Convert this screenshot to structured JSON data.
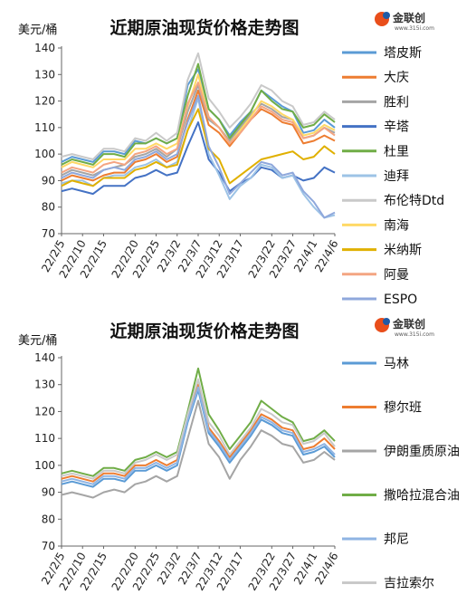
{
  "brand": {
    "name": "金联创",
    "site": "www.315i.com"
  },
  "x_labels": [
    "22/2/5",
    "22/2/10",
    "22/2/15",
    "22/2/20",
    "22/2/25",
    "22/3/2",
    "22/3/7",
    "22/3/12",
    "22/3/17",
    "22/3/22",
    "22/3/27",
    "22/4/1",
    "22/4/6"
  ],
  "chart_data": [
    {
      "type": "line",
      "title": "近期原油现货价格走势图",
      "ylabel": "美元/桶",
      "ylim": [
        70,
        140
      ],
      "yticks": [
        70,
        80,
        90,
        100,
        110,
        120,
        130,
        140
      ],
      "legend_position": "right",
      "colors": [
        "#5b9bd5",
        "#ed7d31",
        "#a5a5a5",
        "#4472c4",
        "#70ad47",
        "#9dc3e6",
        "#c9c9c9",
        "#ffd966",
        "#e0b000",
        "#f4a582",
        "#8fa8dc"
      ],
      "series": [
        {
          "name": "塔皮斯",
          "values": [
            97,
            99,
            98,
            97,
            101,
            101,
            100,
            105,
            104,
            106,
            104,
            106,
            126,
            132,
            117,
            113,
            107,
            112,
            116,
            124,
            121,
            118,
            116,
            108,
            109,
            113,
            110
          ]
        },
        {
          "name": "大庆",
          "values": [
            90,
            92,
            91,
            90,
            92,
            93,
            93,
            97,
            98,
            100,
            97,
            99,
            113,
            124,
            111,
            108,
            103,
            108,
            113,
            117,
            115,
            112,
            111,
            104,
            105,
            107,
            105
          ]
        },
        {
          "name": "胜利",
          "values": [
            92,
            94,
            93,
            92,
            94,
            95,
            96,
            99,
            100,
            102,
            99,
            102,
            116,
            126,
            113,
            110,
            105,
            110,
            115,
            119,
            117,
            114,
            113,
            106,
            107,
            110,
            108
          ]
        },
        {
          "name": "辛塔",
          "values": [
            86,
            87,
            86,
            85,
            88,
            88,
            88,
            91,
            92,
            94,
            92,
            93,
            103,
            112,
            98,
            93,
            86,
            89,
            91,
            95,
            94,
            91,
            92,
            90,
            91,
            95,
            93
          ]
        },
        {
          "name": "杜里",
          "values": [
            96,
            98,
            97,
            96,
            100,
            100,
            99,
            104,
            104,
            106,
            104,
            106,
            122,
            134,
            117,
            113,
            106,
            111,
            116,
            124,
            120,
            117,
            116,
            110,
            111,
            115,
            112
          ]
        },
        {
          "name": "迪拜",
          "values": [
            89,
            90,
            90,
            88,
            91,
            92,
            92,
            95,
            96,
            98,
            95,
            97,
            109,
            121,
            100,
            92,
            83,
            88,
            91,
            96,
            95,
            91,
            92,
            85,
            80,
            76,
            77
          ]
        },
        {
          "name": "布伦特Dtd",
          "values": [
            99,
            100,
            99,
            98,
            102,
            102,
            101,
            106,
            105,
            108,
            105,
            108,
            128,
            138,
            121,
            116,
            110,
            114,
            119,
            126,
            124,
            120,
            118,
            111,
            112,
            116,
            113
          ]
        },
        {
          "name": "南海",
          "values": [
            95,
            97,
            96,
            95,
            98,
            98,
            98,
            102,
            102,
            104,
            102,
            104,
            118,
            130,
            114,
            110,
            104,
            109,
            114,
            120,
            118,
            115,
            113,
            107,
            108,
            111,
            109
          ]
        },
        {
          "name": "米纳斯",
          "values": [
            88,
            90,
            89,
            88,
            91,
            91,
            91,
            94,
            95,
            97,
            95,
            96,
            109,
            117,
            102,
            98,
            89,
            92,
            95,
            98,
            99,
            100,
            101,
            98,
            99,
            103,
            100
          ]
        },
        {
          "name": "阿曼",
          "values": [
            93,
            95,
            94,
            93,
            96,
            97,
            96,
            100,
            101,
            103,
            100,
            102,
            119,
            127,
            114,
            110,
            104,
            108,
            113,
            118,
            116,
            113,
            112,
            106,
            107,
            110,
            107
          ]
        },
        {
          "name": "ESPO",
          "values": [
            91,
            93,
            92,
            91,
            94,
            95,
            94,
            98,
            99,
            101,
            98,
            100,
            112,
            122,
            103,
            95,
            85,
            89,
            93,
            97,
            96,
            92,
            93,
            86,
            82,
            76,
            78
          ]
        }
      ]
    },
    {
      "type": "line",
      "title": "近期原油现货价格走势图",
      "ylabel": "美元/桶",
      "ylim": [
        70,
        140
      ],
      "yticks": [
        70,
        80,
        90,
        100,
        110,
        120,
        130,
        140
      ],
      "legend_position": "right",
      "colors": [
        "#5b9bd5",
        "#ed7d31",
        "#a5a5a5",
        "#70ad47",
        "#8fb4e3",
        "#c9c9c9"
      ],
      "series": [
        {
          "name": "马林",
          "values": [
            93,
            94,
            93,
            92,
            95,
            95,
            94,
            98,
            98,
            100,
            98,
            100,
            116,
            128,
            112,
            107,
            101,
            106,
            111,
            117,
            115,
            112,
            111,
            104,
            105,
            107,
            103
          ]
        },
        {
          "name": "穆尔班",
          "values": [
            95,
            96,
            95,
            94,
            97,
            97,
            96,
            100,
            100,
            102,
            100,
            102,
            118,
            130,
            114,
            109,
            103,
            108,
            113,
            119,
            117,
            114,
            113,
            106,
            107,
            110,
            106
          ]
        },
        {
          "name": "伊朗重质原油",
          "values": [
            89,
            90,
            89,
            88,
            90,
            91,
            90,
            93,
            94,
            96,
            94,
            96,
            110,
            124,
            108,
            103,
            95,
            102,
            107,
            113,
            111,
            108,
            107,
            101,
            102,
            105,
            102
          ]
        },
        {
          "name": "撒哈拉混合油",
          "values": [
            97,
            98,
            97,
            96,
            99,
            99,
            98,
            102,
            103,
            105,
            103,
            105,
            120,
            136,
            119,
            113,
            106,
            111,
            116,
            124,
            121,
            118,
            116,
            109,
            110,
            113,
            109
          ]
        },
        {
          "name": "邦尼",
          "values": [
            94,
            95,
            94,
            93,
            96,
            96,
            95,
            99,
            99,
            101,
            99,
            101,
            117,
            129,
            113,
            108,
            102,
            107,
            112,
            118,
            116,
            113,
            112,
            105,
            106,
            108,
            104
          ]
        },
        {
          "name": "吉拉索尔",
          "values": [
            96,
            97,
            96,
            95,
            98,
            98,
            97,
            101,
            102,
            104,
            102,
            104,
            119,
            132,
            116,
            111,
            104,
            109,
            114,
            121,
            119,
            116,
            115,
            108,
            109,
            112,
            107
          ]
        }
      ]
    }
  ]
}
